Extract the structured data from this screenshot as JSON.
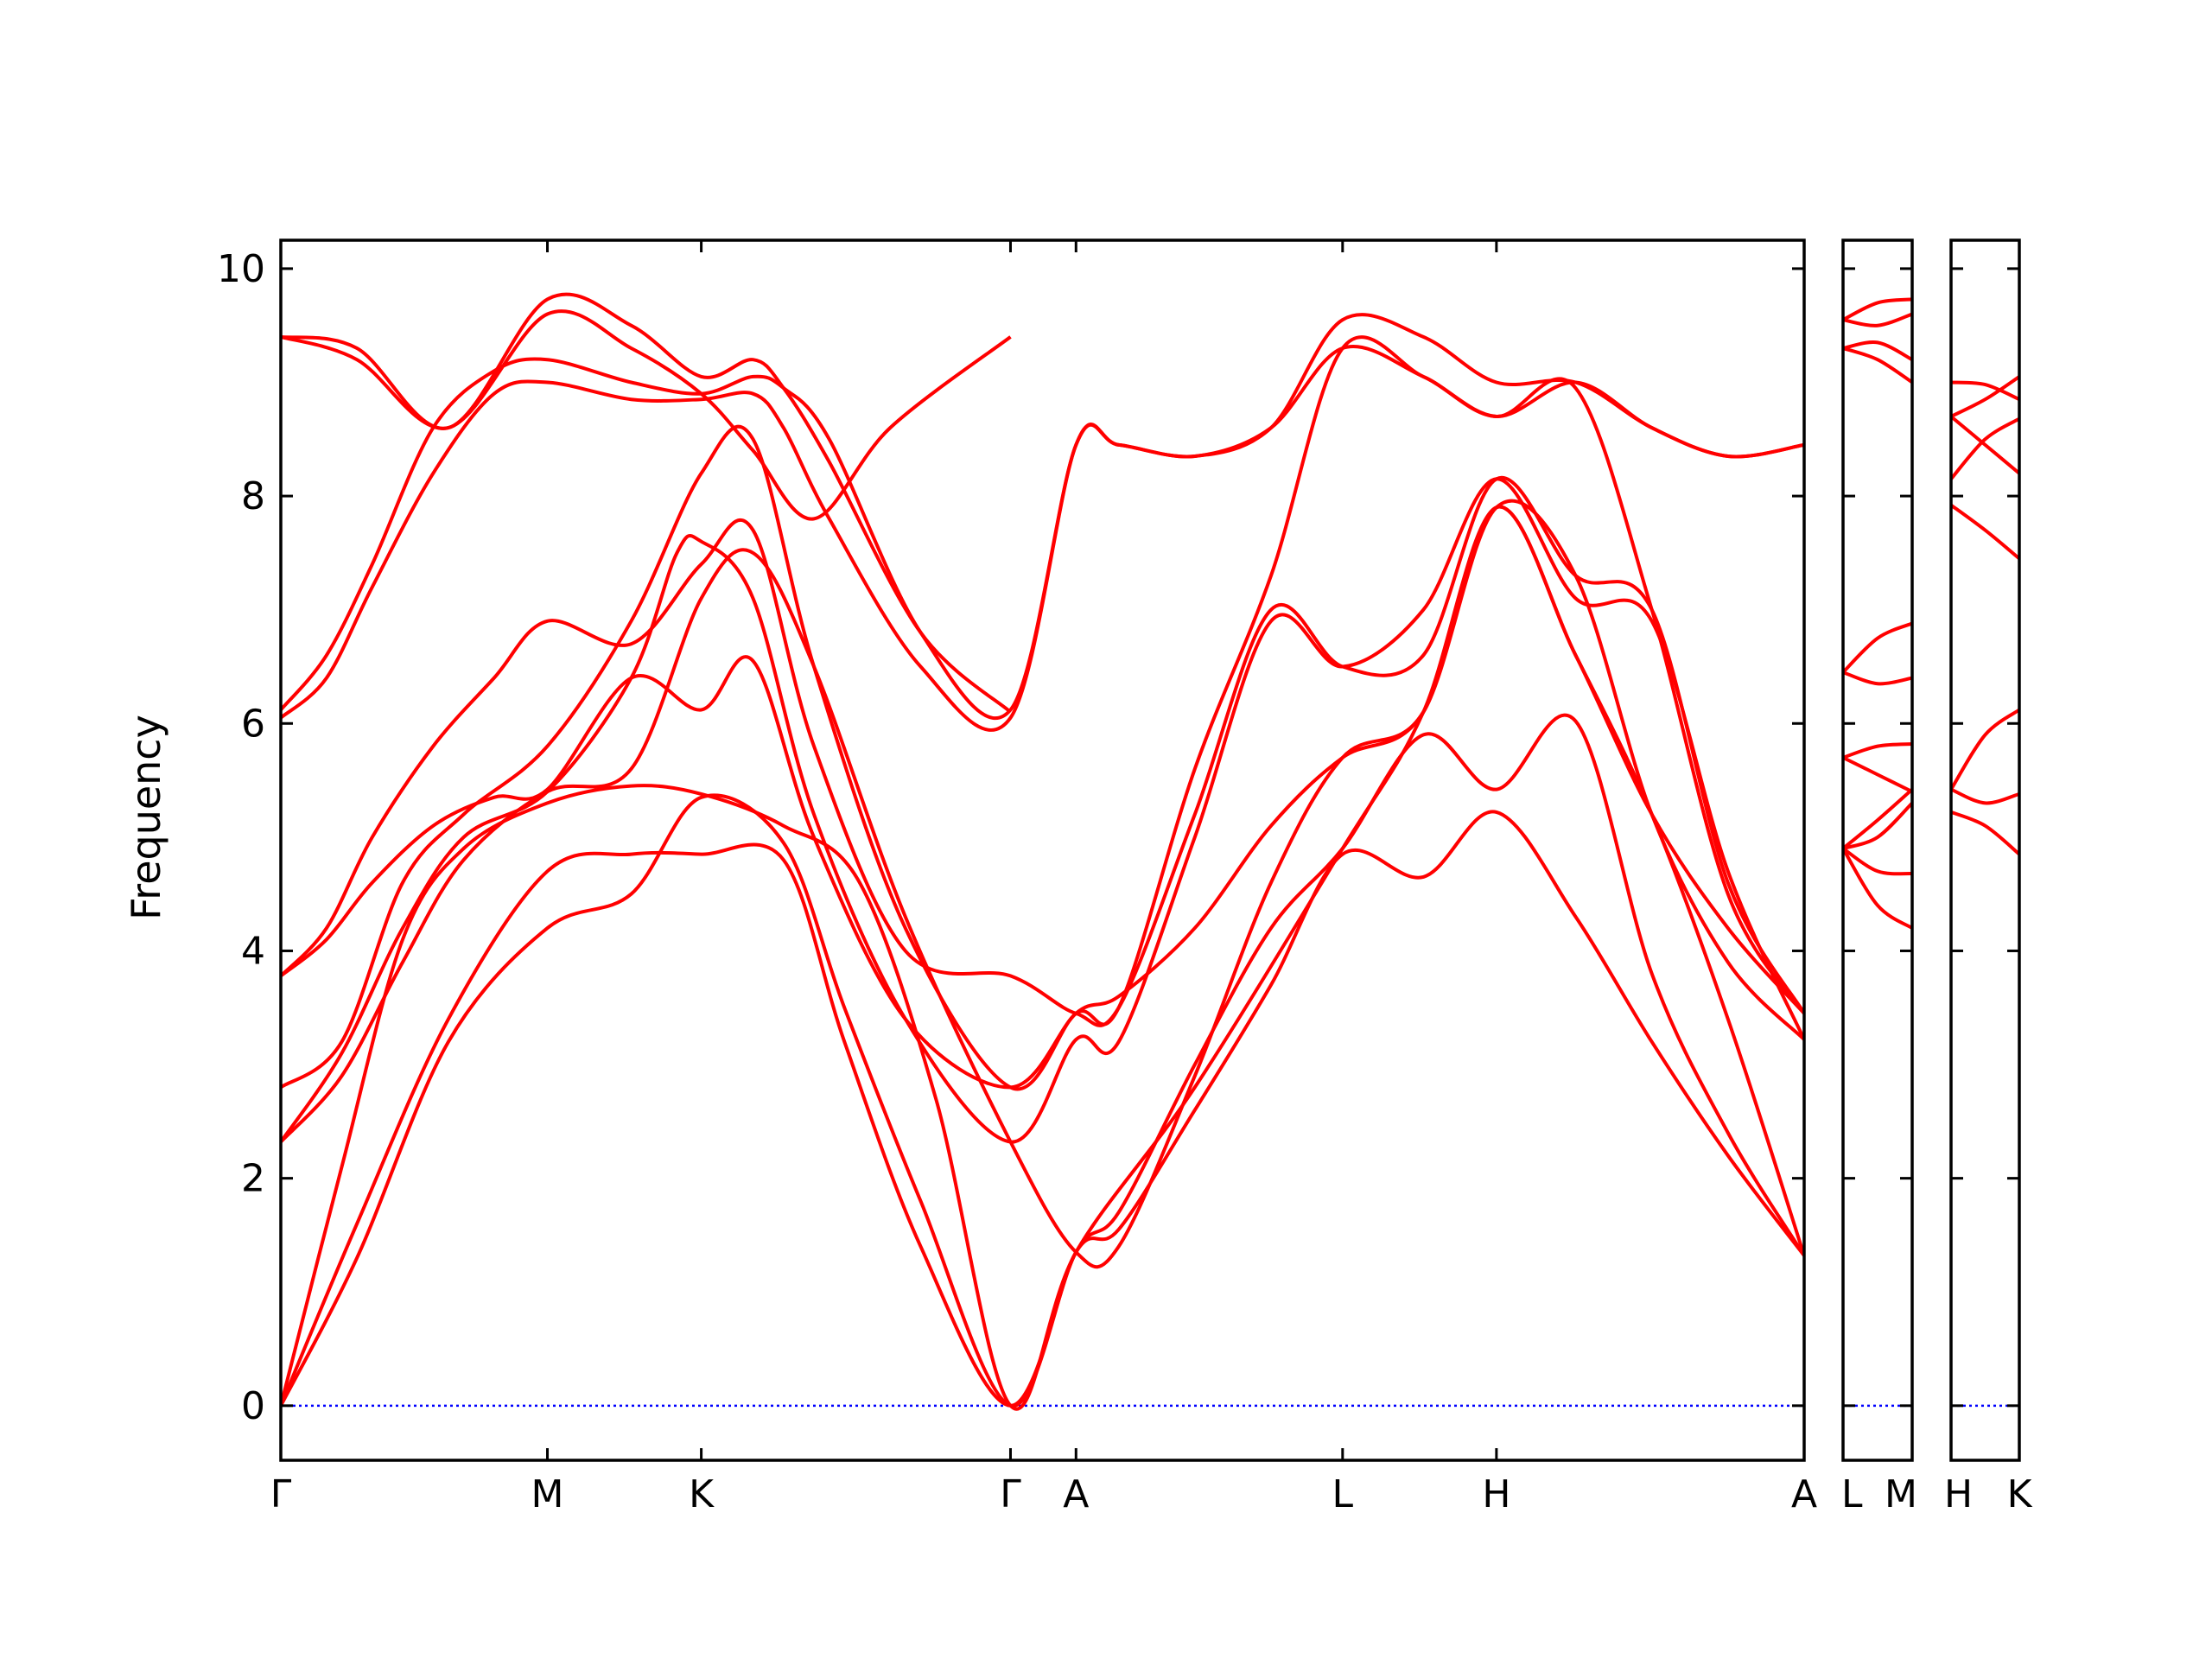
{
  "chart_data": {
    "type": "line",
    "ylabel": "Frequency",
    "xlabel": "",
    "ylim": [
      -0.48,
      10.25
    ],
    "yticks": [
      0,
      2,
      4,
      6,
      8,
      10
    ],
    "colors": {
      "bands": "#ff0000",
      "zero_line": "#0000ff",
      "axes": "#000000"
    },
    "grid": false,
    "panels": [
      {
        "xlim": [
          0,
          1
        ],
        "ticks": [
          {
            "x": 0.0,
            "label": "Γ"
          },
          {
            "x": 0.175,
            "label": "M"
          },
          {
            "x": 0.276,
            "label": "K"
          },
          {
            "x": 0.479,
            "label": "Γ"
          },
          {
            "x": 0.522,
            "label": "A"
          },
          {
            "x": 0.697,
            "label": "L"
          },
          {
            "x": 0.798,
            "label": "H"
          },
          {
            "x": 1.0,
            "label": "A"
          }
        ],
        "series": [
          {
            "x": [
              0,
              0.05,
              0.11,
              0.175,
              0.23,
              0.276,
              0.33,
              0.37,
              0.42,
              0.479,
              0.522,
              0.55,
              0.6,
              0.65,
              0.697,
              0.75,
              0.798,
              0.85,
              0.9,
              0.95,
              1.0
            ],
            "y": [
              0,
              1.3,
              3.2,
              4.2,
              4.5,
              5.35,
              4.95,
              3.5,
              1.8,
              0,
              1.35,
              1.55,
              2.6,
              3.7,
              4.85,
              4.65,
              5.22,
              4.3,
              3.2,
              2.2,
              1.32
            ]
          },
          {
            "x": [
              0,
              0.05,
              0.11,
              0.175,
              0.23,
              0.276,
              0.33,
              0.37,
              0.42,
              0.479,
              0.522,
              0.55,
              0.6,
              0.65,
              0.697,
              0.75,
              0.798,
              0.85,
              0.9,
              0.95,
              1.0
            ],
            "y": [
              0,
              1.6,
              3.4,
              4.7,
              4.85,
              4.85,
              4.8,
              3.2,
              1.4,
              0,
              1.35,
              1.7,
              3.0,
              4.2,
              4.9,
              5.9,
              5.42,
              6.02,
              3.8,
              2.4,
              1.32
            ]
          },
          {
            "x": [
              0,
              0.04,
              0.08,
              0.12,
              0.175,
              0.23,
              0.276,
              0.33,
              0.38,
              0.43,
              0.479,
              0.522,
              0.6,
              0.697,
              0.75,
              0.798,
              0.85,
              0.9,
              0.95,
              1.0
            ],
            "y": [
              0,
              2.1,
              4.1,
              4.9,
              5.3,
              5.45,
              5.38,
              5.1,
              4.6,
              2.7,
              0,
              1.35,
              2.8,
              4.9,
              6.1,
              7.9,
              6.6,
              5.2,
              3.4,
              1.32
            ]
          },
          {
            "x": [
              0,
              0.04,
              0.08,
              0.12,
              0.175,
              0.23,
              0.276,
              0.31,
              0.35,
              0.41,
              0.479,
              0.522,
              0.55,
              0.6,
              0.65,
              0.697,
              0.75,
              0.798,
              0.85,
              0.9,
              0.95,
              1.0
            ],
            "y": [
              2.32,
              2.9,
              3.9,
              4.8,
              5.4,
              5.6,
              7.1,
              7.5,
              6.5,
              4.3,
              2.32,
              1.35,
              1.4,
              2.9,
              4.6,
              5.7,
              6.1,
              7.9,
              7.3,
              5.2,
              3.9,
              3.22
            ]
          },
          {
            "x": [
              0,
              0.04,
              0.08,
              0.12,
              0.175,
              0.23,
              0.26,
              0.276,
              0.31,
              0.35,
              0.41,
              0.479,
              0.522,
              0.55,
              0.6,
              0.65,
              0.697,
              0.75,
              0.798,
              0.85,
              0.9,
              0.95,
              1.0
            ],
            "y": [
              2.32,
              3.1,
              4.2,
              5.0,
              5.4,
              6.4,
              7.5,
              7.6,
              7.1,
              5.2,
              3.4,
              2.32,
              3.22,
              3.2,
              5.0,
              6.9,
              6.5,
              7.0,
              8.15,
              7.1,
              6.9,
              4.7,
              3.22
            ]
          },
          {
            "x": [
              0,
              0.04,
              0.08,
              0.12,
              0.175,
              0.23,
              0.276,
              0.31,
              0.35,
              0.41,
              0.479,
              0.522,
              0.55,
              0.6,
              0.65,
              0.697,
              0.75,
              0.798,
              0.85,
              0.9,
              0.95,
              1.0
            ],
            "y": [
              2.8,
              3.2,
              4.6,
              5.2,
              5.8,
              6.9,
              8.2,
              8.5,
              6.5,
              4.2,
              2.8,
              3.45,
              3.5,
              5.6,
              7.3,
              9.3,
              9.05,
              8.7,
              8.95,
              7.0,
              4.5,
              3.45
            ]
          },
          {
            "x": [
              0,
              0.03,
              0.06,
              0.1,
              0.14,
              0.175,
              0.23,
              0.276,
              0.31,
              0.35,
              0.41,
              0.479,
              0.522,
              0.55,
              0.6,
              0.65,
              0.697,
              0.75,
              0.798,
              0.85,
              0.9,
              0.95,
              1.0
            ],
            "y": [
              3.78,
              4.1,
              4.6,
              5.1,
              5.35,
              5.42,
              6.4,
              6.12,
              6.55,
              5.0,
              3.4,
              2.8,
              3.45,
              3.6,
              4.2,
              5.1,
              5.7,
              6.1,
              7.9,
              6.6,
              5.2,
              4.2,
              3.45
            ]
          },
          {
            "x": [
              0,
              0.03,
              0.06,
              0.1,
              0.14,
              0.175,
              0.23,
              0.276,
              0.31,
              0.35,
              0.41,
              0.479,
              0.522,
              0.55,
              0.6,
              0.65,
              0.697,
              0.75,
              0.798,
              0.85,
              0.9,
              0.95,
              1.0
            ],
            "y": [
              3.78,
              4.2,
              5.0,
              5.8,
              6.4,
              6.9,
              6.7,
              7.4,
              7.7,
              5.8,
              4.0,
              3.78,
              3.45,
              3.5,
              5.2,
              7.0,
              6.5,
              6.6,
              8.15,
              7.3,
              7.0,
              4.6,
              3.45
            ]
          },
          {
            "x": [
              0,
              0.03,
              0.06,
              0.1,
              0.14,
              0.175,
              0.23,
              0.276,
              0.31,
              0.33,
              0.36,
              0.42,
              0.479,
              0.522,
              0.55,
              0.6,
              0.65,
              0.697,
              0.75,
              0.798,
              0.85,
              0.9,
              0.95,
              1.0
            ],
            "y": [
              6.05,
              6.4,
              7.2,
              8.2,
              8.9,
              9.0,
              8.85,
              8.85,
              8.9,
              8.6,
              7.8,
              6.5,
              6.05,
              8.45,
              8.45,
              8.35,
              8.6,
              9.3,
              9.05,
              8.7,
              9.0,
              8.6,
              8.35,
              8.45
            ]
          },
          {
            "x": [
              0,
              0.03,
              0.06,
              0.1,
              0.14,
              0.175,
              0.23,
              0.276,
              0.31,
              0.33,
              0.36,
              0.42,
              0.479,
              0.522,
              0.55,
              0.6,
              0.65,
              0.697,
              0.75,
              0.798,
              0.85,
              0.9,
              0.95,
              1.0
            ],
            "y": [
              6.12,
              6.6,
              7.4,
              8.6,
              9.1,
              9.2,
              9.0,
              8.9,
              9.05,
              8.95,
              8.5,
              6.8,
              6.12,
              8.45,
              8.45,
              8.35,
              8.6,
              9.55,
              9.4,
              9.0,
              9.0,
              8.6,
              8.35,
              8.45
            ]
          },
          {
            "x": [
              0,
              0.05,
              0.11,
              0.175,
              0.23,
              0.276,
              0.31,
              0.35,
              0.4,
              0.479
            ],
            "y": [
              9.4,
              9.2,
              8.6,
              9.6,
              9.3,
              8.9,
              8.4,
              7.8,
              8.6,
              9.4
            ]
          },
          {
            "x": [
              0,
              0.05,
              0.11,
              0.175,
              0.23,
              0.276,
              0.31,
              0.33,
              0.36,
              0.42,
              0.479
            ],
            "y": [
              9.4,
              9.3,
              8.6,
              9.73,
              9.5,
              9.05,
              9.2,
              8.95,
              8.3,
              6.8,
              6.1
            ]
          }
        ]
      },
      {
        "xlim": [
          0,
          1
        ],
        "ticks": [
          {
            "x": 0,
            "label": "L"
          },
          {
            "x": 1,
            "label": "M"
          }
        ],
        "series": [
          {
            "x": [
              0,
              0.5,
              1
            ],
            "y": [
              9.55,
              9.7,
              9.73
            ]
          },
          {
            "x": [
              0,
              0.5,
              1
            ],
            "y": [
              9.55,
              9.5,
              9.6
            ]
          },
          {
            "x": [
              0,
              0.5,
              1
            ],
            "y": [
              9.3,
              9.2,
              9.0
            ]
          },
          {
            "x": [
              0,
              0.5,
              1
            ],
            "y": [
              9.3,
              9.35,
              9.2
            ]
          },
          {
            "x": [
              0,
              0.5,
              1
            ],
            "y": [
              6.45,
              6.75,
              6.88
            ]
          },
          {
            "x": [
              0,
              0.5,
              1
            ],
            "y": [
              6.45,
              6.35,
              6.4
            ]
          },
          {
            "x": [
              0,
              0.5,
              1
            ],
            "y": [
              5.7,
              5.8,
              5.82
            ]
          },
          {
            "x": [
              0,
              0.5,
              1
            ],
            "y": [
              5.7,
              5.55,
              5.4
            ]
          },
          {
            "x": [
              0,
              0.5,
              1
            ],
            "y": [
              4.9,
              5.15,
              5.42
            ]
          },
          {
            "x": [
              0,
              0.5,
              1
            ],
            "y": [
              4.9,
              5.0,
              5.3
            ]
          },
          {
            "x": [
              0,
              0.5,
              1
            ],
            "y": [
              4.9,
              4.7,
              4.68
            ]
          },
          {
            "x": [
              0,
              0.5,
              1
            ],
            "y": [
              4.9,
              4.4,
              4.2
            ]
          }
        ]
      },
      {
        "xlim": [
          0,
          1
        ],
        "ticks": [
          {
            "x": 0,
            "label": "H"
          },
          {
            "x": 1,
            "label": "K"
          }
        ],
        "series": [
          {
            "x": [
              0,
              0.5,
              1
            ],
            "y": [
              9.0,
              8.98,
              8.85
            ]
          },
          {
            "x": [
              0,
              0.5,
              1
            ],
            "y": [
              8.7,
              8.85,
              9.05
            ]
          },
          {
            "x": [
              0,
              0.5,
              1
            ],
            "y": [
              8.7,
              8.45,
              8.2
            ]
          },
          {
            "x": [
              0,
              0.5,
              1
            ],
            "y": [
              8.15,
              8.5,
              8.68
            ]
          },
          {
            "x": [
              0,
              0.5,
              1
            ],
            "y": [
              7.92,
              7.7,
              7.45
            ]
          },
          {
            "x": [
              0,
              0.5,
              1
            ],
            "y": [
              5.42,
              5.9,
              6.12
            ]
          },
          {
            "x": [
              0,
              0.5,
              1
            ],
            "y": [
              5.42,
              5.3,
              5.38
            ]
          },
          {
            "x": [
              0,
              0.5,
              1
            ],
            "y": [
              5.22,
              5.1,
              4.85
            ]
          }
        ]
      }
    ]
  }
}
